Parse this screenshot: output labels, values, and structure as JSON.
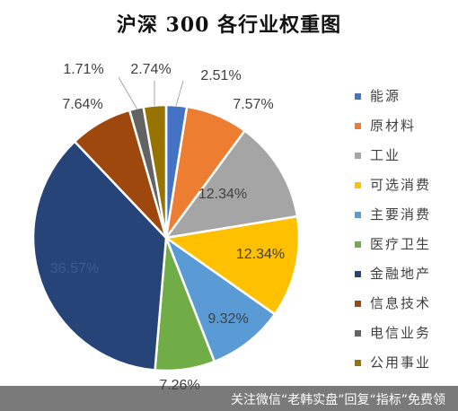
{
  "chart_data": {
    "type": "pie",
    "title": "沪深 300 各行业权重图",
    "categories": [
      "能源",
      "原材料",
      "工业",
      "可选消费",
      "主要消费",
      "医疗卫生",
      "金融地产",
      "信息技术",
      "电信业务",
      "公用事业"
    ],
    "values": [
      2.51,
      7.57,
      12.34,
      12.34,
      9.32,
      7.26,
      36.57,
      7.64,
      1.71,
      2.74
    ],
    "data_labels": [
      "2.51%",
      "7.57%",
      "12.34%",
      "12.34%",
      "9.32%",
      "7.26%",
      "36.57%",
      "7.64%",
      "1.71%",
      "2.74%"
    ],
    "colors": [
      "#4472C4",
      "#ED7D31",
      "#A5A5A5",
      "#FFC000",
      "#5B9BD5",
      "#70AD47",
      "#264478",
      "#9E480E",
      "#636363",
      "#997300"
    ],
    "legend_position": "right"
  },
  "watermark": {
    "text": "关注微信“老韩实盘”回复“指标”免费领"
  }
}
